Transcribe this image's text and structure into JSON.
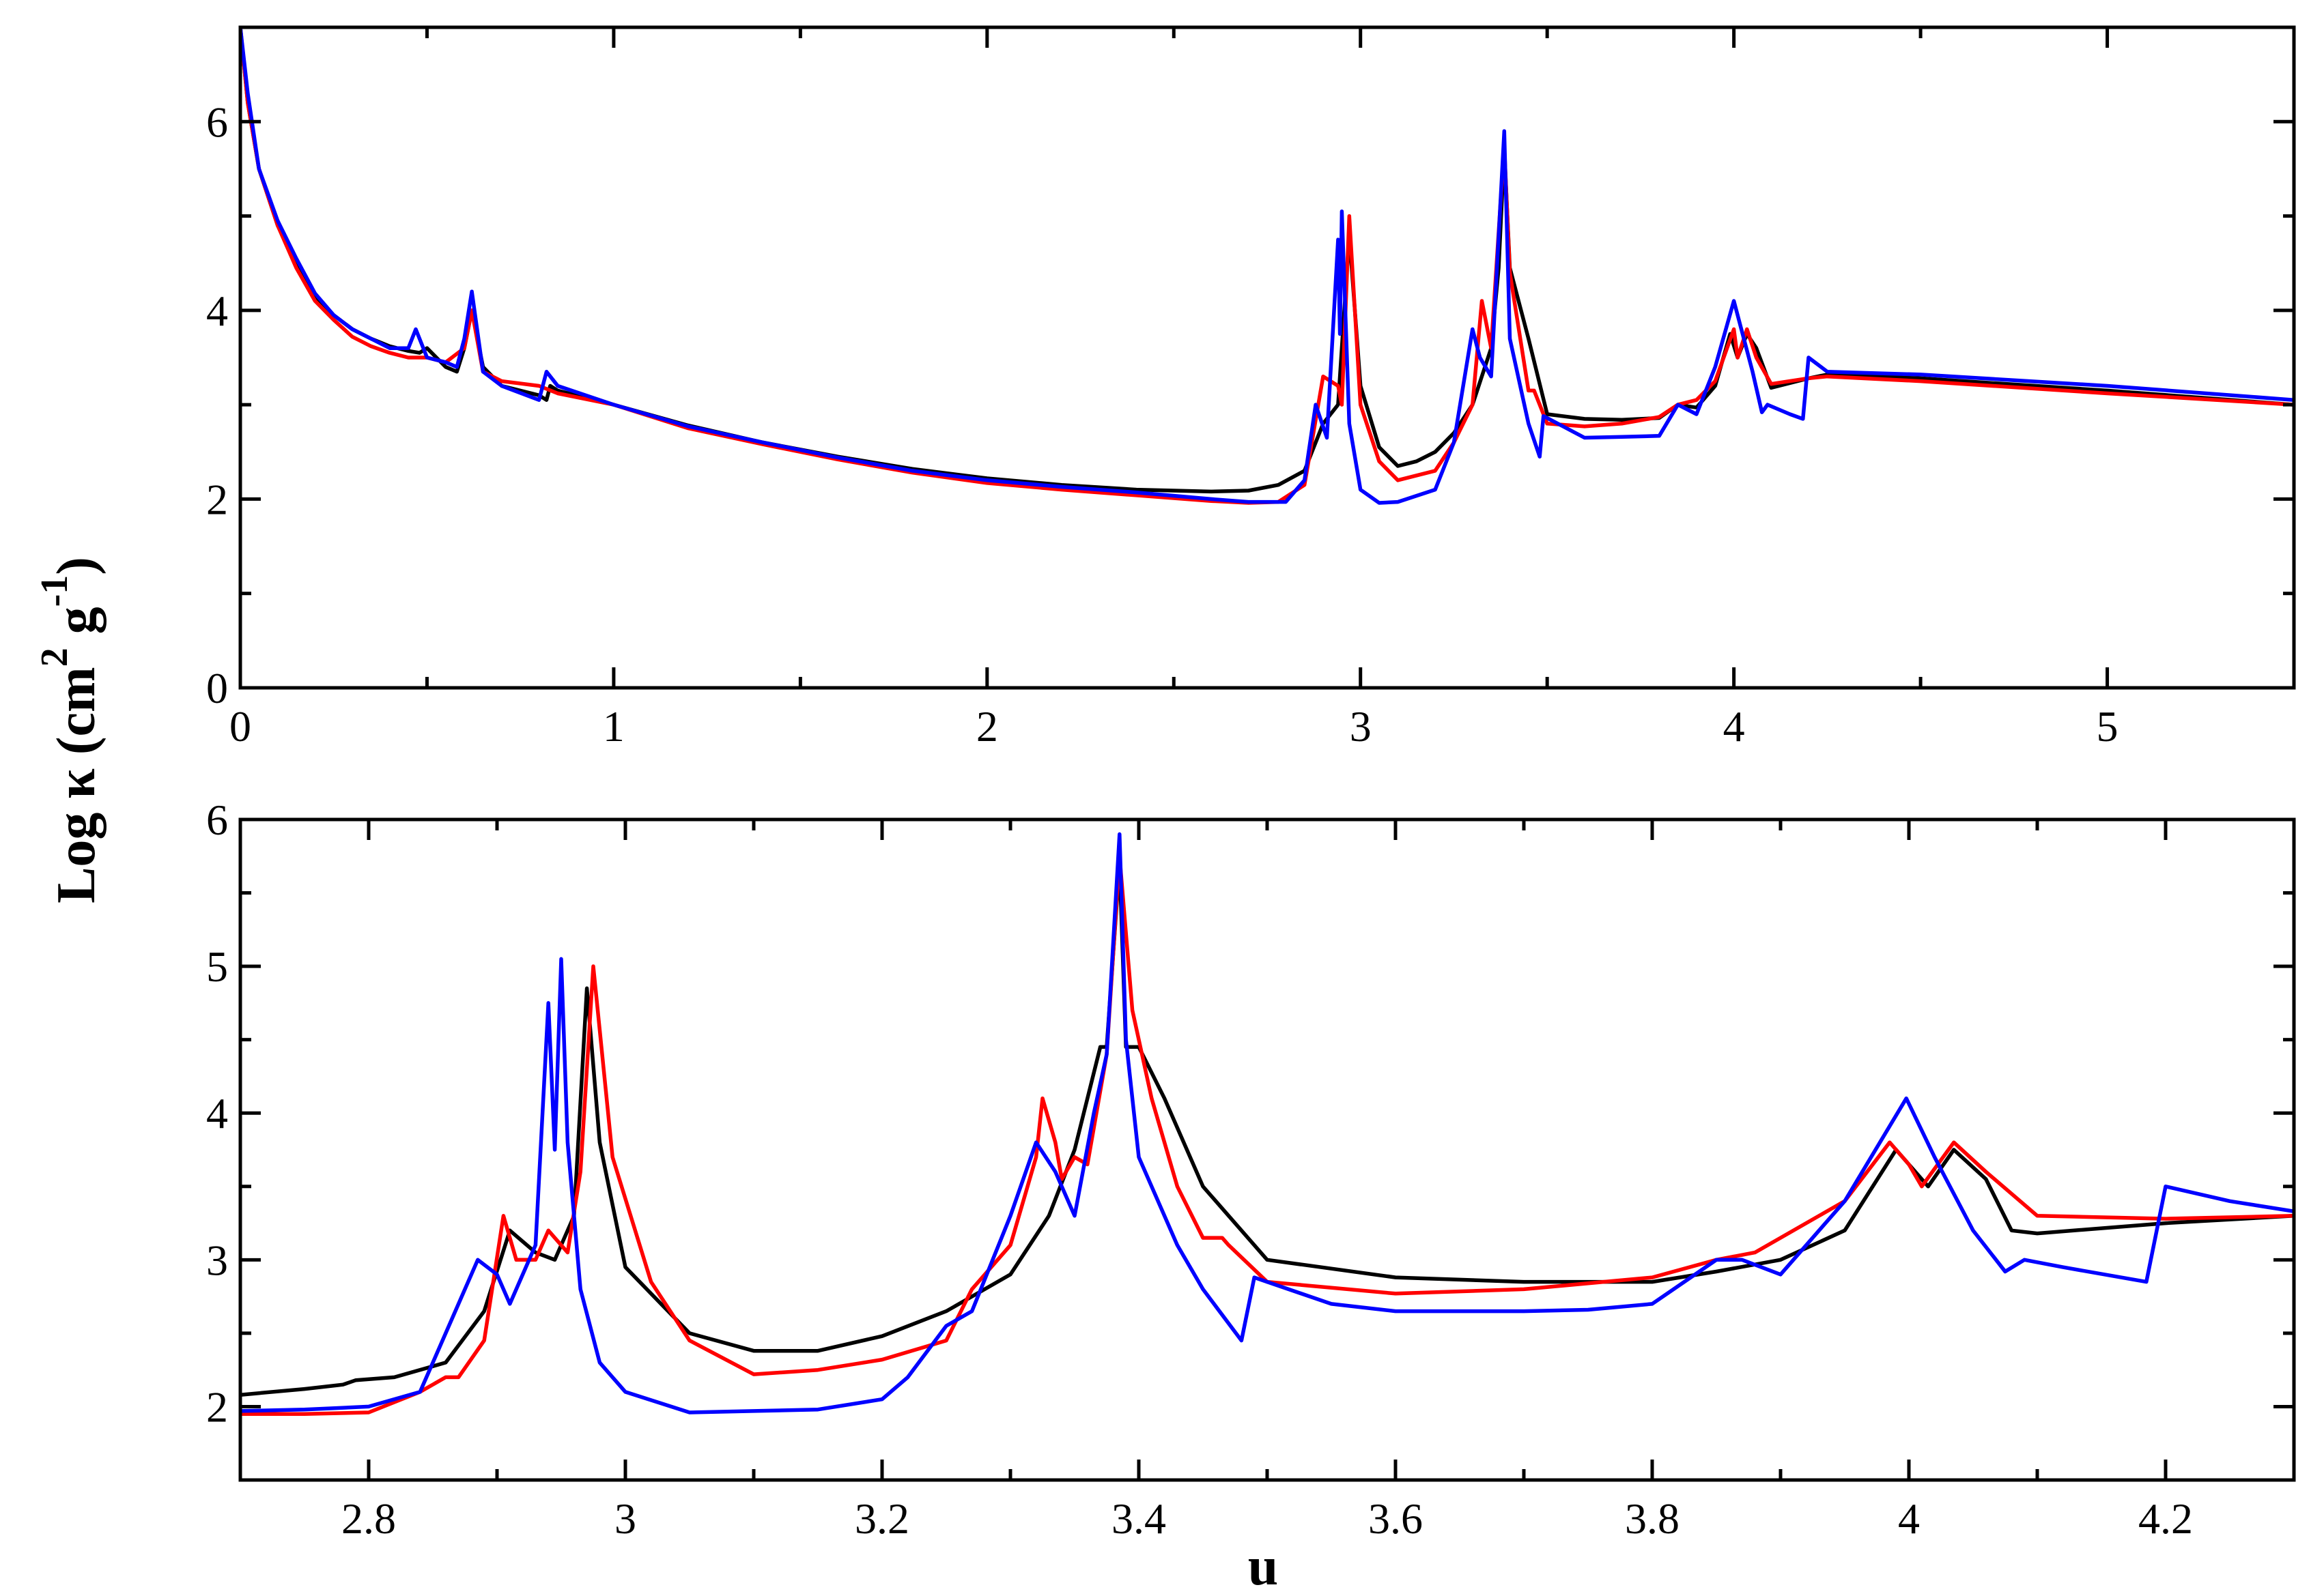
{
  "chart_data": [
    {
      "type": "line",
      "panel": "top",
      "xlim": [
        0,
        5.5
      ],
      "ylim": [
        0,
        7
      ],
      "xticks": [
        0,
        1,
        2,
        3,
        4,
        5
      ],
      "xticklabels": [
        "0",
        "1",
        "2",
        "3",
        "4",
        "5"
      ],
      "xminor": [
        0.5,
        1.5,
        2.5,
        3.5,
        4.5
      ],
      "yticks": [
        0,
        2,
        4,
        6
      ],
      "yticklabels": [
        "0",
        "2",
        "4",
        "6"
      ],
      "yminor": [
        1,
        3,
        5
      ],
      "grid": false,
      "series": [
        {
          "color": "#000000",
          "x": [
            0.0,
            0.02,
            0.05,
            0.1,
            0.15,
            0.2,
            0.25,
            0.3,
            0.35,
            0.4,
            0.45,
            0.48,
            0.5,
            0.55,
            0.58,
            0.6,
            0.62,
            0.65,
            0.7,
            0.75,
            0.8,
            0.82,
            0.83,
            0.85,
            1.0,
            1.2,
            1.4,
            1.6,
            1.8,
            2.0,
            2.2,
            2.4,
            2.6,
            2.7,
            2.78,
            2.85,
            2.9,
            2.94,
            2.97,
            3.0,
            3.05,
            3.1,
            3.15,
            3.2,
            3.25,
            3.3,
            3.35,
            3.37,
            3.385,
            3.4,
            3.45,
            3.5,
            3.6,
            3.7,
            3.8,
            3.85,
            3.9,
            3.95,
            3.99,
            4.01,
            4.035,
            4.06,
            4.1,
            4.2,
            4.25,
            4.5,
            5.0,
            5.5
          ],
          "y": [
            7.0,
            6.2,
            5.5,
            4.9,
            4.5,
            4.15,
            3.95,
            3.8,
            3.7,
            3.62,
            3.57,
            3.55,
            3.6,
            3.4,
            3.35,
            3.6,
            4.0,
            3.4,
            3.2,
            3.15,
            3.1,
            3.05,
            3.2,
            3.15,
            3.0,
            2.78,
            2.6,
            2.45,
            2.32,
            2.22,
            2.15,
            2.1,
            2.08,
            2.09,
            2.15,
            2.3,
            2.8,
            3.0,
            4.8,
            3.2,
            2.55,
            2.35,
            2.4,
            2.5,
            2.7,
            3.0,
            3.6,
            4.45,
            5.7,
            4.45,
            3.7,
            2.9,
            2.85,
            2.84,
            2.86,
            3.0,
            2.97,
            3.2,
            3.75,
            3.5,
            3.75,
            3.6,
            3.18,
            3.28,
            3.32,
            3.28,
            3.15,
            3.0
          ]
        },
        {
          "color": "#ff0000",
          "x": [
            0.0,
            0.02,
            0.05,
            0.1,
            0.15,
            0.2,
            0.25,
            0.3,
            0.35,
            0.4,
            0.45,
            0.5,
            0.55,
            0.6,
            0.62,
            0.65,
            0.7,
            0.8,
            0.85,
            1.0,
            1.2,
            1.4,
            1.6,
            1.8,
            2.0,
            2.2,
            2.4,
            2.6,
            2.7,
            2.78,
            2.85,
            2.9,
            2.94,
            2.95,
            2.97,
            3.0,
            3.05,
            3.1,
            3.2,
            3.25,
            3.3,
            3.325,
            3.35,
            3.385,
            3.4,
            3.45,
            3.465,
            3.5,
            3.6,
            3.7,
            3.8,
            3.85,
            3.9,
            3.95,
            4.0,
            4.01,
            4.035,
            4.06,
            4.1,
            4.2,
            4.25,
            4.5,
            5.0,
            5.5
          ],
          "y": [
            7.0,
            6.2,
            5.5,
            4.9,
            4.45,
            4.1,
            3.9,
            3.72,
            3.62,
            3.55,
            3.5,
            3.5,
            3.45,
            3.6,
            4.0,
            3.35,
            3.25,
            3.2,
            3.12,
            3.0,
            2.75,
            2.58,
            2.42,
            2.28,
            2.17,
            2.1,
            2.04,
            1.98,
            1.96,
            1.97,
            2.15,
            3.3,
            3.2,
            3.0,
            5.0,
            3.0,
            2.4,
            2.2,
            2.3,
            2.6,
            3.0,
            4.1,
            3.6,
            5.75,
            4.4,
            3.15,
            3.15,
            2.8,
            2.77,
            2.8,
            2.87,
            3.0,
            3.05,
            3.25,
            3.8,
            3.5,
            3.8,
            3.5,
            3.22,
            3.28,
            3.3,
            3.25,
            3.12,
            3.0
          ]
        },
        {
          "color": "#0000ff",
          "x": [
            0.0,
            0.02,
            0.05,
            0.1,
            0.15,
            0.2,
            0.25,
            0.3,
            0.35,
            0.4,
            0.45,
            0.47,
            0.5,
            0.55,
            0.58,
            0.6,
            0.62,
            0.65,
            0.7,
            0.8,
            0.82,
            0.85,
            1.0,
            1.2,
            1.4,
            1.6,
            1.8,
            2.0,
            2.2,
            2.4,
            2.6,
            2.7,
            2.8,
            2.85,
            2.88,
            2.91,
            2.94,
            2.945,
            2.95,
            2.97,
            3.0,
            3.05,
            3.1,
            3.2,
            3.25,
            3.3,
            3.32,
            3.35,
            3.385,
            3.4,
            3.45,
            3.48,
            3.49,
            3.6,
            3.7,
            3.8,
            3.85,
            3.9,
            3.95,
            4.0,
            4.05,
            4.075,
            4.09,
            4.15,
            4.185,
            4.2,
            4.25,
            4.5,
            5.0,
            5.5
          ],
          "y": [
            7.0,
            6.3,
            5.5,
            4.95,
            4.55,
            4.18,
            3.95,
            3.8,
            3.7,
            3.6,
            3.6,
            3.8,
            3.5,
            3.45,
            3.4,
            3.7,
            4.2,
            3.35,
            3.2,
            3.05,
            3.35,
            3.2,
            3.0,
            2.77,
            2.6,
            2.44,
            2.3,
            2.2,
            2.13,
            2.07,
            2.0,
            1.97,
            1.97,
            2.2,
            3.0,
            2.65,
            4.75,
            3.75,
            5.05,
            2.8,
            2.1,
            1.96,
            1.97,
            2.1,
            2.6,
            3.8,
            3.5,
            3.3,
            5.9,
            3.7,
            2.8,
            2.45,
            2.88,
            2.65,
            2.66,
            2.67,
            3.0,
            2.9,
            3.4,
            4.1,
            3.35,
            2.92,
            3.0,
            2.9,
            2.85,
            3.5,
            3.35,
            3.32,
            3.2,
            3.05
          ]
        }
      ]
    },
    {
      "type": "line",
      "panel": "bottom",
      "xlabel": "u",
      "xlim": [
        2.7,
        4.3
      ],
      "ylim": [
        1.5,
        6
      ],
      "xticks": [
        2.8,
        3.0,
        3.2,
        3.4,
        3.6,
        3.8,
        4.0,
        4.2
      ],
      "xticklabels": [
        "2.8",
        "3",
        "3.2",
        "3.4",
        "3.6",
        "3.8",
        "4",
        "4.2"
      ],
      "xminor": [
        2.7,
        2.9,
        3.1,
        3.3,
        3.5,
        3.7,
        3.9,
        4.1,
        4.3
      ],
      "yticks": [
        2,
        3,
        4,
        5,
        6
      ],
      "yticklabels": [
        "2",
        "3",
        "4",
        "5",
        "6"
      ],
      "yminor": [
        1.5,
        2.5,
        3.5,
        4.5,
        5.5
      ],
      "grid": false,
      "series": [
        {
          "color": "#000000",
          "x": [
            2.7,
            2.75,
            2.78,
            2.79,
            2.82,
            2.86,
            2.89,
            2.91,
            2.93,
            2.945,
            2.96,
            2.97,
            2.98,
            3.0,
            3.05,
            3.1,
            3.15,
            3.2,
            3.25,
            3.3,
            3.33,
            3.35,
            3.37,
            3.375,
            3.385,
            3.39,
            3.4,
            3.42,
            3.45,
            3.5,
            3.6,
            3.7,
            3.8,
            3.85,
            3.9,
            3.95,
            3.99,
            4.0,
            4.015,
            4.035,
            4.06,
            4.08,
            4.1,
            4.2,
            4.3
          ],
          "y": [
            2.08,
            2.12,
            2.15,
            2.18,
            2.2,
            2.3,
            2.65,
            3.2,
            3.05,
            3.0,
            3.3,
            4.85,
            3.8,
            2.95,
            2.5,
            2.38,
            2.38,
            2.48,
            2.65,
            2.9,
            3.3,
            3.75,
            4.45,
            4.45,
            5.7,
            4.45,
            4.45,
            4.1,
            3.5,
            3.0,
            2.88,
            2.85,
            2.85,
            2.92,
            3.0,
            3.2,
            3.75,
            3.65,
            3.5,
            3.75,
            3.55,
            3.2,
            3.18,
            3.25,
            3.3
          ]
        },
        {
          "color": "#ff0000",
          "x": [
            2.7,
            2.75,
            2.8,
            2.84,
            2.86,
            2.87,
            2.89,
            2.905,
            2.915,
            2.93,
            2.94,
            2.955,
            2.965,
            2.975,
            2.99,
            3.02,
            3.05,
            3.1,
            3.15,
            3.2,
            3.25,
            3.27,
            3.3,
            3.32,
            3.325,
            3.335,
            3.34,
            3.35,
            3.36,
            3.375,
            3.385,
            3.395,
            3.41,
            3.43,
            3.45,
            3.465,
            3.47,
            3.5,
            3.6,
            3.7,
            3.8,
            3.85,
            3.88,
            3.95,
            3.985,
            4.0,
            4.01,
            4.035,
            4.06,
            4.1,
            4.2,
            4.3
          ],
          "y": [
            1.95,
            1.95,
            1.96,
            2.1,
            2.2,
            2.2,
            2.45,
            3.3,
            3.0,
            3.0,
            3.2,
            3.05,
            3.6,
            5.0,
            3.7,
            2.85,
            2.45,
            2.22,
            2.25,
            2.32,
            2.45,
            2.8,
            3.1,
            3.7,
            4.1,
            3.8,
            3.55,
            3.7,
            3.65,
            4.4,
            5.75,
            4.7,
            4.1,
            3.5,
            3.15,
            3.15,
            3.1,
            2.85,
            2.77,
            2.8,
            2.88,
            3.0,
            3.05,
            3.4,
            3.8,
            3.65,
            3.5,
            3.8,
            3.6,
            3.3,
            3.28,
            3.3
          ]
        },
        {
          "color": "#0000ff",
          "x": [
            2.7,
            2.75,
            2.8,
            2.84,
            2.86,
            2.885,
            2.9,
            2.91,
            2.93,
            2.94,
            2.945,
            2.95,
            2.955,
            2.965,
            2.98,
            3.0,
            3.05,
            3.1,
            3.15,
            3.2,
            3.22,
            3.25,
            3.27,
            3.3,
            3.32,
            3.335,
            3.35,
            3.365,
            3.375,
            3.385,
            3.39,
            3.4,
            3.43,
            3.45,
            3.48,
            3.49,
            3.5,
            3.55,
            3.6,
            3.7,
            3.75,
            3.8,
            3.85,
            3.87,
            3.9,
            3.95,
            3.998,
            4.02,
            4.05,
            4.075,
            4.09,
            4.12,
            4.185,
            4.2,
            4.25,
            4.3
          ],
          "y": [
            1.97,
            1.98,
            2.0,
            2.1,
            2.5,
            3.0,
            2.9,
            2.7,
            3.1,
            4.75,
            3.75,
            5.05,
            3.8,
            2.8,
            2.3,
            2.1,
            1.96,
            1.97,
            1.98,
            2.05,
            2.2,
            2.55,
            2.65,
            3.3,
            3.8,
            3.6,
            3.3,
            4.0,
            4.4,
            5.9,
            4.5,
            3.7,
            3.1,
            2.8,
            2.45,
            2.88,
            2.85,
            2.7,
            2.65,
            2.65,
            2.66,
            2.7,
            3.0,
            3.0,
            2.9,
            3.4,
            4.1,
            3.7,
            3.2,
            2.92,
            3.0,
            2.95,
            2.85,
            3.5,
            3.4,
            3.33
          ]
        }
      ]
    }
  ],
  "ylabel_parts": {
    "base": "Log κ (cm",
    "sup1": "2",
    "mid": " g",
    "sup2": "-1",
    "end": ")"
  }
}
